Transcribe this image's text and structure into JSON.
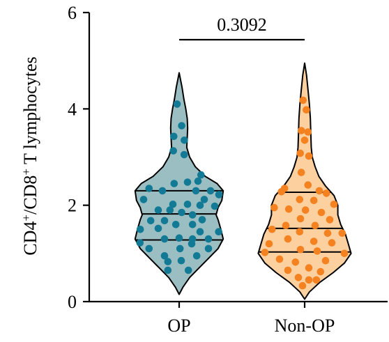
{
  "chart_data": {
    "type": "violin",
    "ylabel_parts": [
      "CD4",
      "+",
      "/CD8",
      "+",
      " T lymphocytes"
    ],
    "ylim": [
      0,
      6
    ],
    "yticks": [
      "0",
      "2",
      "4",
      "6"
    ],
    "categories": [
      "OP",
      "Non-OP"
    ],
    "comparison": {
      "label": "0.3092",
      "groups": [
        "OP",
        "Non-OP"
      ]
    },
    "series": [
      {
        "category": "OP",
        "color": "#137a96",
        "fill": "#9bbec3",
        "range": [
          0.15,
          4.75
        ],
        "quartiles": [
          1.28,
          1.82,
          2.3
        ],
        "profile": [
          [
            0.15,
            0.0
          ],
          [
            0.3,
            0.08
          ],
          [
            0.5,
            0.22
          ],
          [
            0.7,
            0.42
          ],
          [
            0.9,
            0.62
          ],
          [
            1.1,
            0.82
          ],
          [
            1.3,
            0.93
          ],
          [
            1.5,
            0.88
          ],
          [
            1.7,
            0.82
          ],
          [
            1.8,
            0.78
          ],
          [
            1.95,
            0.82
          ],
          [
            2.1,
            0.9
          ],
          [
            2.3,
            0.93
          ],
          [
            2.45,
            0.8
          ],
          [
            2.6,
            0.55
          ],
          [
            2.8,
            0.34
          ],
          [
            3.0,
            0.22
          ],
          [
            3.2,
            0.16
          ],
          [
            3.4,
            0.17
          ],
          [
            3.6,
            0.18
          ],
          [
            3.8,
            0.17
          ],
          [
            4.0,
            0.14
          ],
          [
            4.2,
            0.1
          ],
          [
            4.45,
            0.06
          ],
          [
            4.75,
            0.0
          ]
        ],
        "points": [
          [
            4.1,
            -0.05
          ],
          [
            3.65,
            0.06
          ],
          [
            3.43,
            -0.2
          ],
          [
            3.35,
            0.22
          ],
          [
            3.13,
            -0.18
          ],
          [
            3.05,
            0.12
          ],
          [
            2.63,
            0.72
          ],
          [
            2.5,
            0.45
          ],
          [
            2.48,
            0.2
          ],
          [
            2.45,
            -0.12
          ],
          [
            2.35,
            -0.72
          ],
          [
            2.3,
            -0.4
          ],
          [
            2.3,
            0.4
          ],
          [
            2.3,
            0.75
          ],
          [
            2.22,
            0.95
          ],
          [
            2.12,
            -0.85
          ],
          [
            2.12,
            0.6
          ],
          [
            2.02,
            -0.15
          ],
          [
            2.02,
            0.2
          ],
          [
            2.0,
            0.5
          ],
          [
            1.98,
            0.85
          ],
          [
            1.9,
            -0.5
          ],
          [
            1.9,
            -0.22
          ],
          [
            1.85,
            0.06
          ],
          [
            1.8,
            0.32
          ],
          [
            1.68,
            -0.68
          ],
          [
            1.68,
            -0.35
          ],
          [
            1.7,
            0.55
          ],
          [
            1.6,
            -0.08
          ],
          [
            1.6,
            0.32
          ],
          [
            1.52,
            -0.5
          ],
          [
            1.5,
            -0.95
          ],
          [
            1.45,
            0.95
          ],
          [
            1.45,
            0.5
          ],
          [
            1.32,
            0.0
          ],
          [
            1.3,
            -0.35
          ],
          [
            1.3,
            0.32
          ],
          [
            1.3,
            0.7
          ],
          [
            1.22,
            -0.95
          ],
          [
            1.2,
            0.3
          ],
          [
            1.1,
            -0.72
          ],
          [
            1.1,
            0.02
          ],
          [
            1.1,
            0.7
          ],
          [
            0.95,
            -0.35
          ],
          [
            0.95,
            0.42
          ],
          [
            0.85,
            0.05
          ],
          [
            0.83,
            -0.27
          ],
          [
            0.65,
            -0.27
          ],
          [
            0.65,
            0.22
          ]
        ]
      },
      {
        "category": "Non-OP",
        "color": "#f58220",
        "fill": "#fdd0a0",
        "range": [
          0.05,
          4.95
        ],
        "quartiles": [
          1.03,
          1.52,
          2.27
        ],
        "profile": [
          [
            0.05,
            0.0
          ],
          [
            0.2,
            0.1
          ],
          [
            0.4,
            0.32
          ],
          [
            0.6,
            0.6
          ],
          [
            0.8,
            0.84
          ],
          [
            1.0,
            0.98
          ],
          [
            1.2,
            0.92
          ],
          [
            1.4,
            0.86
          ],
          [
            1.6,
            0.76
          ],
          [
            1.8,
            0.7
          ],
          [
            2.0,
            0.7
          ],
          [
            2.2,
            0.62
          ],
          [
            2.4,
            0.44
          ],
          [
            2.6,
            0.3
          ],
          [
            2.8,
            0.22
          ],
          [
            3.0,
            0.16
          ],
          [
            3.2,
            0.14
          ],
          [
            3.5,
            0.13
          ],
          [
            3.8,
            0.12
          ],
          [
            4.1,
            0.1
          ],
          [
            4.4,
            0.07
          ],
          [
            4.7,
            0.04
          ],
          [
            4.95,
            0.0
          ]
        ],
        "points": [
          [
            4.18,
            -0.05
          ],
          [
            3.98,
            0.04
          ],
          [
            3.55,
            -0.1
          ],
          [
            3.52,
            0.18
          ],
          [
            3.35,
            0.0
          ],
          [
            3.08,
            -0.12
          ],
          [
            3.02,
            0.1
          ],
          [
            2.68,
            -0.08
          ],
          [
            2.42,
            0.08
          ],
          [
            2.35,
            -0.48
          ],
          [
            2.3,
            0.35
          ],
          [
            2.28,
            -0.9
          ],
          [
            2.25,
            0.52
          ],
          [
            2.12,
            -0.12
          ],
          [
            2.1,
            0.22
          ],
          [
            2.02,
            0.7
          ],
          [
            1.95,
            -0.75
          ],
          [
            1.92,
            -0.38
          ],
          [
            1.9,
            0.02
          ],
          [
            1.85,
            0.4
          ],
          [
            1.72,
            -0.1
          ],
          [
            1.7,
            0.6
          ],
          [
            1.58,
            -0.45
          ],
          [
            1.58,
            0.25
          ],
          [
            1.5,
            -0.78
          ],
          [
            1.45,
            -0.12
          ],
          [
            1.42,
            0.55
          ],
          [
            1.42,
            0.95
          ],
          [
            1.3,
            -0.4
          ],
          [
            1.25,
            0.22
          ],
          [
            1.22,
            0.65
          ],
          [
            1.2,
            -0.85
          ],
          [
            1.08,
            -0.1
          ],
          [
            1.05,
            0.3
          ],
          [
            1.02,
            -0.95
          ],
          [
            1.0,
            0.95
          ],
          [
            0.88,
            -0.6
          ],
          [
            0.85,
            0.5
          ],
          [
            0.82,
            -0.22
          ],
          [
            0.7,
            0.1
          ],
          [
            0.65,
            -0.4
          ],
          [
            0.62,
            0.38
          ],
          [
            0.5,
            -0.15
          ],
          [
            0.45,
            0.1
          ],
          [
            0.45,
            0.28
          ],
          [
            0.33,
            -0.05
          ]
        ]
      }
    ]
  }
}
